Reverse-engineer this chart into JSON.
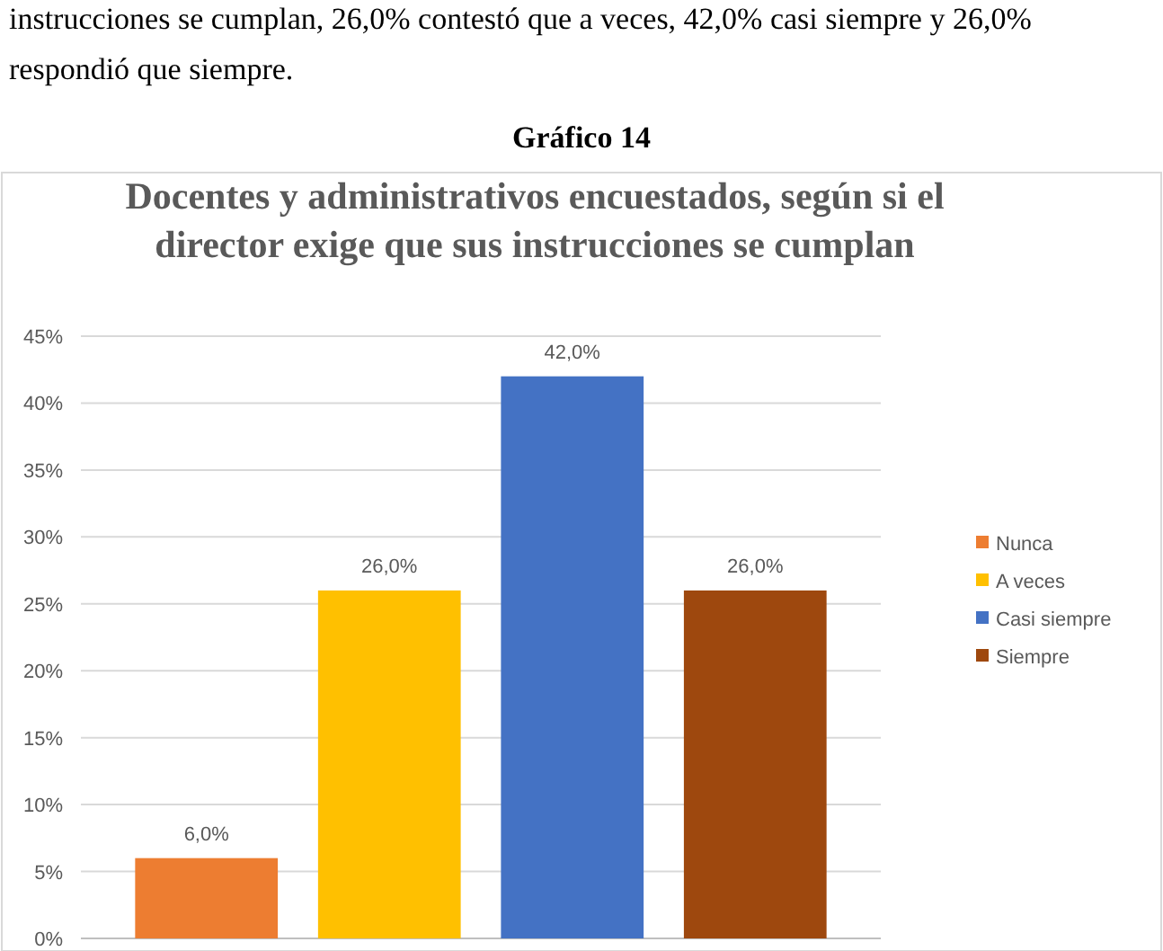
{
  "chart_data": {
    "type": "bar",
    "title": "Docentes y administrativos encuestados, según si el director exige que sus instrucciones se cumplan",
    "annotations": [
      "instrucciones se cumplan, 26,0% contestó que a veces, 42,0% casi siempre y 26,0%",
      "respondió que siempre.",
      "Gráfico 14"
    ],
    "categories": [
      null,
      null,
      null,
      null
    ],
    "series": [
      {
        "name": "Nunca",
        "color": "#ed7d31",
        "values": [
          6,
          null,
          null,
          null
        ],
        "value_labels": [
          "6,0%",
          null,
          null,
          null
        ]
      },
      {
        "name": "A veces",
        "color": "#ffc000",
        "values": [
          null,
          26,
          null,
          null
        ],
        "value_labels": [
          null,
          "26,0%",
          null,
          null
        ]
      },
      {
        "name": "Casi siempre",
        "color": "#4472c4",
        "values": [
          null,
          null,
          42,
          null
        ],
        "value_labels": [
          null,
          null,
          "42,0%",
          null
        ]
      },
      {
        "name": "Siempre",
        "color": "#9e480e",
        "values": [
          null,
          null,
          null,
          26
        ],
        "value_labels": [
          null,
          null,
          null,
          "26,0%"
        ]
      }
    ],
    "ylim": [
      0,
      45
    ],
    "yticks": [
      {
        "value": 0,
        "label": "0%"
      },
      {
        "value": 5,
        "label": "5%"
      },
      {
        "value": 10,
        "label": "10%"
      },
      {
        "value": 15,
        "label": "15%"
      },
      {
        "value": 20,
        "label": "20%"
      },
      {
        "value": 25,
        "label": "25%"
      },
      {
        "value": 30,
        "label": "30%"
      },
      {
        "value": 35,
        "label": "35%"
      },
      {
        "value": 40,
        "label": "40%"
      },
      {
        "value": 45,
        "label": "45%"
      }
    ],
    "grid": "y",
    "legend": "right",
    "tick_labels": "y"
  }
}
